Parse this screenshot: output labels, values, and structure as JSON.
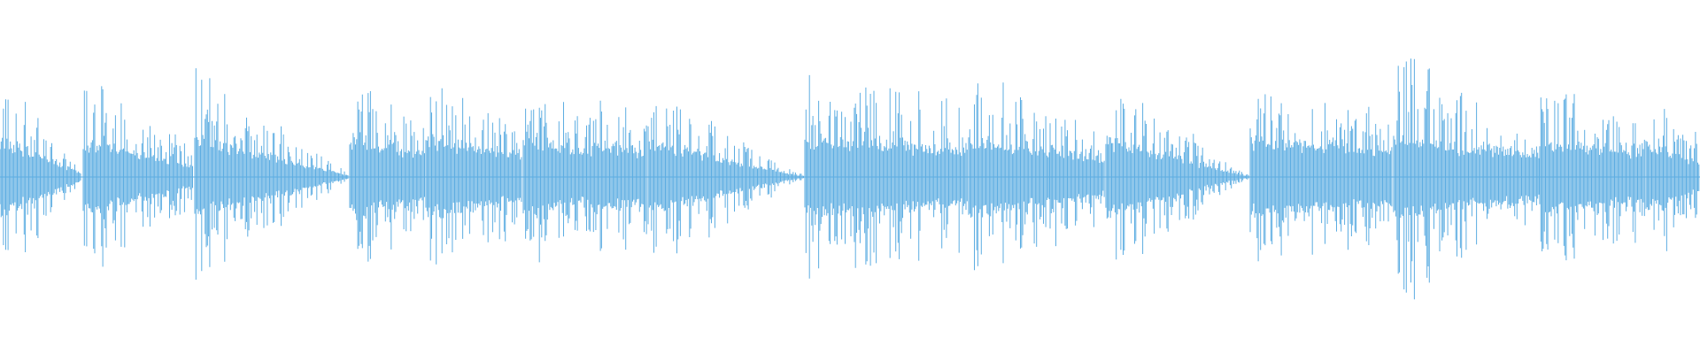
{
  "chart_data": {
    "type": "area",
    "title": "",
    "xlabel": "",
    "ylabel": "",
    "grid": false,
    "axes_visible": false,
    "legend": "none",
    "color": "#5dade2"
  }
}
